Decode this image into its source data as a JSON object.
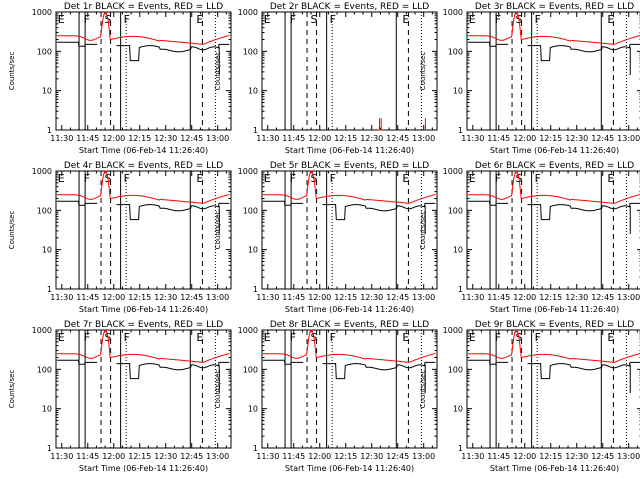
{
  "chart_data": [
    {
      "type": "line",
      "title": "Det 1r BLACK = Events, RED = LLD",
      "xlabel": "Start Time (06-Feb-14 11:26:40)",
      "ylabel": "Counts/sec",
      "yscale": "log",
      "ylim": [
        1,
        1000
      ],
      "xticks": [
        "11:30",
        "11:45",
        "12:00",
        "12:15",
        "12:30",
        "12:45",
        "13:00"
      ],
      "yticks": [
        "1",
        "10",
        "100",
        "1000"
      ],
      "letters": [
        "E",
        "F",
        "S",
        "F",
        "E"
      ],
      "series": [
        {
          "name": "Events",
          "color": "#000000",
          "pattern": "events"
        },
        {
          "name": "LLD",
          "color": "#ff0000",
          "pattern": "lld"
        }
      ]
    },
    {
      "type": "line",
      "title": "Det 2r BLACK = Events, RED = LLD",
      "xlabel": "Start Time (06-Feb-14 11:26:40)",
      "ylabel": "Counts/sec",
      "yscale": "log",
      "ylim": [
        1,
        1000
      ],
      "xticks": [
        "11:30",
        "11:45",
        "12:00",
        "12:15",
        "12:30",
        "12:45",
        "13:00"
      ],
      "yticks": [
        "1",
        "10",
        "100",
        "1000"
      ],
      "letters": [
        "E",
        "F",
        "S",
        "F",
        "E"
      ],
      "series": [
        {
          "name": "LLD",
          "color": "#ff0000",
          "pattern": "spikes"
        }
      ]
    },
    {
      "type": "line",
      "title": "Det 3r BLACK = Events, RED = LLD",
      "xlabel": "Start Time (06-Feb-14 11:26:40)",
      "ylabel": "Counts/sec",
      "yscale": "log",
      "ylim": [
        1,
        1000
      ],
      "xticks": [
        "11:30",
        "11:45",
        "12:00",
        "12:15",
        "12:30",
        "12:45",
        "13:00"
      ],
      "yticks": [
        "1",
        "10",
        "100",
        "1000"
      ],
      "letters": [
        "E",
        "F",
        "S",
        "F",
        "E"
      ],
      "series": [
        {
          "name": "Events",
          "color": "#000000",
          "pattern": "events"
        },
        {
          "name": "LLD",
          "color": "#ff0000",
          "pattern": "lld"
        }
      ]
    },
    {
      "type": "line",
      "title": "Det 4r BLACK = Events, RED = LLD",
      "xlabel": "Start Time (06-Feb-14 11:26:40)",
      "ylabel": "Counts/sec",
      "yscale": "log",
      "ylim": [
        1,
        1000
      ],
      "xticks": [
        "11:30",
        "11:45",
        "12:00",
        "12:15",
        "12:30",
        "12:45",
        "13:00"
      ],
      "yticks": [
        "1",
        "10",
        "100",
        "1000"
      ],
      "letters": [
        "E",
        "F",
        "S",
        "F",
        "E"
      ],
      "series": [
        {
          "name": "Events",
          "color": "#000000",
          "pattern": "events"
        },
        {
          "name": "LLD",
          "color": "#ff0000",
          "pattern": "lld"
        }
      ]
    },
    {
      "type": "line",
      "title": "Det 5r BLACK = Events, RED = LLD",
      "xlabel": "Start Time (06-Feb-14 11:26:40)",
      "ylabel": "Counts/sec",
      "yscale": "log",
      "ylim": [
        1,
        1000
      ],
      "xticks": [
        "11:30",
        "11:45",
        "12:00",
        "12:15",
        "12:30",
        "12:45",
        "13:00"
      ],
      "yticks": [
        "1",
        "10",
        "100",
        "1000"
      ],
      "letters": [
        "E",
        "F",
        "S",
        "F",
        "E"
      ],
      "series": [
        {
          "name": "Events",
          "color": "#000000",
          "pattern": "events"
        },
        {
          "name": "LLD",
          "color": "#ff0000",
          "pattern": "lld"
        }
      ]
    },
    {
      "type": "line",
      "title": "Det 6r BLACK = Events, RED = LLD",
      "xlabel": "Start Time (06-Feb-14 11:26:40)",
      "ylabel": "Counts/sec",
      "yscale": "log",
      "ylim": [
        1,
        1000
      ],
      "xticks": [
        "11:30",
        "11:45",
        "12:00",
        "12:15",
        "12:30",
        "12:45",
        "13:00"
      ],
      "yticks": [
        "1",
        "10",
        "100",
        "1000"
      ],
      "letters": [
        "E",
        "F",
        "S",
        "F",
        "E"
      ],
      "series": [
        {
          "name": "Events",
          "color": "#000000",
          "pattern": "events"
        },
        {
          "name": "LLD",
          "color": "#ff0000",
          "pattern": "lld"
        }
      ]
    },
    {
      "type": "line",
      "title": "Det 7r BLACK = Events, RED = LLD",
      "xlabel": "Start Time (06-Feb-14 11:26:40)",
      "ylabel": "Counts/sec",
      "yscale": "log",
      "ylim": [
        1,
        1000
      ],
      "xticks": [
        "11:30",
        "11:45",
        "12:00",
        "12:15",
        "12:30",
        "12:45",
        "13:00"
      ],
      "yticks": [
        "1",
        "10",
        "100",
        "1000"
      ],
      "letters": [
        "E",
        "F",
        "S",
        "F",
        "E"
      ],
      "series": [
        {
          "name": "Events",
          "color": "#000000",
          "pattern": "events"
        },
        {
          "name": "LLD",
          "color": "#ff0000",
          "pattern": "lld"
        }
      ]
    },
    {
      "type": "line",
      "title": "Det 8r BLACK = Events, RED = LLD",
      "xlabel": "Start Time (06-Feb-14 11:26:40)",
      "ylabel": "Counts/sec",
      "yscale": "log",
      "ylim": [
        1,
        1000
      ],
      "xticks": [
        "11:30",
        "11:45",
        "12:00",
        "12:15",
        "12:30",
        "12:45",
        "13:00"
      ],
      "yticks": [
        "1",
        "10",
        "100",
        "1000"
      ],
      "letters": [
        "E",
        "F",
        "S",
        "F",
        "E"
      ],
      "series": [
        {
          "name": "Events",
          "color": "#000000",
          "pattern": "events"
        },
        {
          "name": "LLD",
          "color": "#ff0000",
          "pattern": "lld"
        }
      ]
    },
    {
      "type": "line",
      "title": "Det 9r BLACK = Events, RED = LLD",
      "xlabel": "Start Time (06-Feb-14 11:26:40)",
      "ylabel": "Counts/sec",
      "yscale": "log",
      "ylim": [
        1,
        1000
      ],
      "xticks": [
        "11:30",
        "11:45",
        "12:00",
        "12:15",
        "12:30",
        "12:45",
        "13:00"
      ],
      "yticks": [
        "1",
        "10",
        "100",
        "1000"
      ],
      "letters": [
        "E",
        "F",
        "S",
        "F",
        "E"
      ],
      "series": [
        {
          "name": "Events",
          "color": "#000000",
          "pattern": "events"
        },
        {
          "name": "LLD",
          "color": "#ff0000",
          "pattern": "lld"
        }
      ]
    }
  ]
}
